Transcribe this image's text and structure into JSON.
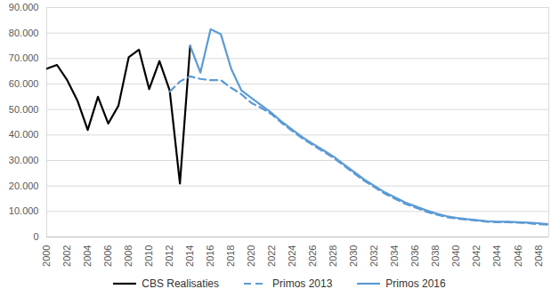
{
  "chart_data": {
    "type": "line",
    "x": [
      2000,
      2001,
      2002,
      2003,
      2004,
      2005,
      2006,
      2007,
      2008,
      2009,
      2010,
      2011,
      2012,
      2013,
      2014,
      2015,
      2016,
      2017,
      2018,
      2019,
      2020,
      2021,
      2022,
      2023,
      2024,
      2025,
      2026,
      2027,
      2028,
      2029,
      2030,
      2031,
      2032,
      2033,
      2034,
      2035,
      2036,
      2037,
      2038,
      2039,
      2040,
      2041,
      2042,
      2043,
      2044,
      2045,
      2046,
      2047,
      2048,
      2049
    ],
    "series": [
      {
        "name": "CBS Realisaties",
        "color": "#000000",
        "line_style": "solid",
        "values": [
          66000,
          67500,
          61500,
          53500,
          42000,
          55000,
          44500,
          51500,
          70500,
          73500,
          58000,
          69000,
          57500,
          21000,
          75000,
          null,
          null,
          null,
          null,
          null,
          null,
          null,
          null,
          null,
          null,
          null,
          null,
          null,
          null,
          null,
          null,
          null,
          null,
          null,
          null,
          null,
          null,
          null,
          null,
          null,
          null,
          null,
          null,
          null,
          null,
          null,
          null,
          null,
          null,
          null
        ]
      },
      {
        "name": "Primos 2013",
        "color": "#5b9bd5",
        "line_style": "dashed",
        "values": [
          null,
          null,
          null,
          null,
          null,
          null,
          null,
          null,
          null,
          null,
          null,
          null,
          57000,
          61000,
          63000,
          62000,
          61500,
          61500,
          58500,
          56000,
          52500,
          50500,
          48000,
          44500,
          41500,
          38500,
          36000,
          33500,
          31000,
          28000,
          25000,
          22000,
          19500,
          17000,
          15000,
          13000,
          11500,
          10000,
          8800,
          7800,
          7200,
          6800,
          6400,
          6000,
          5800,
          5800,
          5600,
          5400,
          5000,
          4800
        ]
      },
      {
        "name": "Primos 2016",
        "color": "#5b9bd5",
        "line_style": "solid",
        "values": [
          null,
          null,
          null,
          null,
          null,
          null,
          null,
          null,
          null,
          null,
          null,
          null,
          null,
          null,
          75000,
          64500,
          81500,
          79500,
          66000,
          57500,
          54500,
          51500,
          48500,
          45000,
          42000,
          39000,
          36500,
          34000,
          31500,
          28500,
          25500,
          22500,
          20000,
          17500,
          15500,
          13500,
          12000,
          10500,
          9200,
          8200,
          7500,
          7000,
          6600,
          6200,
          6000,
          6000,
          5800,
          5600,
          5400,
          5000
        ]
      }
    ],
    "xlim": [
      2000,
      2049
    ],
    "xticks": [
      2000,
      2002,
      2004,
      2006,
      2008,
      2010,
      2012,
      2014,
      2016,
      2018,
      2020,
      2022,
      2024,
      2026,
      2028,
      2030,
      2032,
      2034,
      2036,
      2038,
      2040,
      2042,
      2044,
      2046,
      2048
    ],
    "ylim": [
      0,
      90000
    ],
    "yticks": [
      0,
      {
        "value": 10000,
        "label": "10.000"
      },
      {
        "value": 20000,
        "label": "20.000"
      },
      {
        "value": 30000,
        "label": "30.000"
      },
      {
        "value": 40000,
        "label": "40.000"
      },
      {
        "value": 50000,
        "label": "50.000"
      },
      {
        "value": 60000,
        "label": "60.000"
      },
      {
        "value": 70000,
        "label": "70.000"
      },
      {
        "value": 80000,
        "label": "80.000"
      },
      {
        "value": 90000,
        "label": "90.000"
      }
    ],
    "grid": true,
    "legend": "bottom"
  }
}
